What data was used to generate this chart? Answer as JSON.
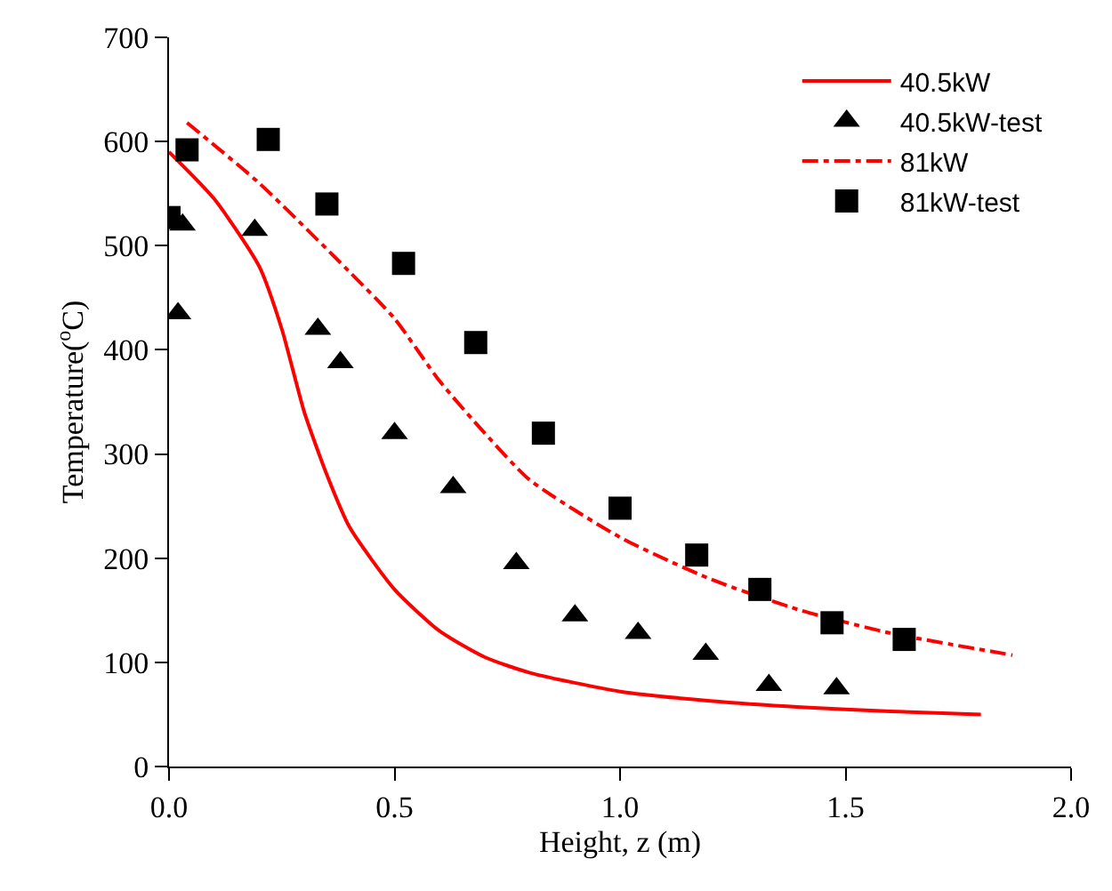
{
  "chart_data": {
    "type": "line",
    "xlabel": "Height, z (m)",
    "ylabel": "Temperature($^{o}$C)",
    "xlim": [
      0,
      2
    ],
    "xticks": [
      {
        "value": 0,
        "label": "0.0"
      },
      0.5,
      {
        "value": 1,
        "label": "1.0"
      },
      1.5,
      {
        "value": 2,
        "label": "2.0"
      }
    ],
    "ylim": [
      0,
      700
    ],
    "yticks": [
      0,
      100,
      200,
      300,
      400,
      500,
      600,
      700
    ],
    "legend": "top right",
    "series": [
      {
        "name": "40.5kW",
        "color": "#ff0000",
        "line_style": "solid",
        "marker": "none",
        "x": [
          0,
          0.1,
          0.2,
          0.25,
          0.3,
          0.35,
          0.4,
          0.5,
          0.6,
          0.7,
          0.8,
          1.0,
          1.2,
          1.4,
          1.6,
          1.8
        ],
        "values": [
          590,
          545,
          480,
          420,
          340,
          280,
          230,
          170,
          130,
          105,
          90,
          72,
          63,
          57,
          53,
          50
        ]
      },
      {
        "name": "40.5kW-test",
        "type": "scatter",
        "color": "#000000",
        "marker": "triangle",
        "x": [
          0.02,
          0.03,
          0.19,
          0.33,
          0.38,
          0.5,
          0.63,
          0.77,
          0.9,
          1.04,
          1.19,
          1.33,
          1.48
        ],
        "values": [
          435,
          520,
          515,
          420,
          388,
          320,
          268,
          195,
          145,
          128,
          108,
          78,
          75
        ]
      },
      {
        "name": "81kW",
        "color": "#ff0000",
        "line_style": "dashdot",
        "marker": "none",
        "x": [
          0.04,
          0.2,
          0.4,
          0.5,
          0.6,
          0.7,
          0.8,
          1.0,
          1.2,
          1.4,
          1.6,
          1.87
        ],
        "values": [
          618,
          560,
          475,
          430,
          370,
          320,
          275,
          220,
          180,
          150,
          128,
          107
        ]
      },
      {
        "name": "81kW-test",
        "type": "scatter",
        "color": "#000000",
        "marker": "square",
        "x": [
          0.0,
          0.04,
          0.22,
          0.35,
          0.52,
          0.68,
          0.83,
          1.0,
          1.17,
          1.31,
          1.47,
          1.63
        ],
        "values": [
          527,
          592,
          602,
          540,
          483,
          407,
          320,
          248,
          203,
          170,
          138,
          122
        ]
      }
    ]
  }
}
